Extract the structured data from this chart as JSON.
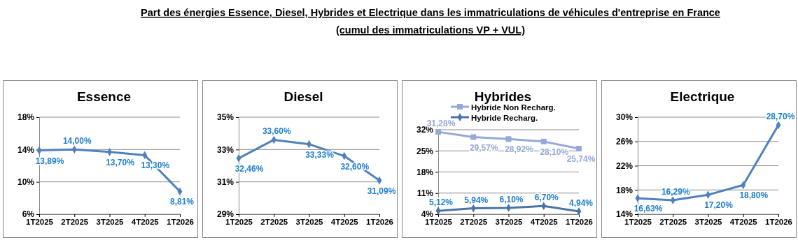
{
  "chart_data": [
    {
      "type": "line",
      "title": "Essence",
      "annotations": [
        "Part des énergies Essence, Diesel, Hybrides et Electrique dans les immatriculations de véhicules d'entreprise en France",
        "(cumul des immatriculations VP + VUL)"
      ],
      "categories": [
        "1T2025",
        "2T2025",
        "3T2025",
        "4T2025",
        "1T2026"
      ],
      "ylim": [
        6,
        18
      ],
      "yticks": [
        {
          "value": 6,
          "label": "6%"
        },
        {
          "value": 10,
          "label": "10%"
        },
        {
          "value": 14,
          "label": "14%"
        },
        {
          "value": 18,
          "label": "18%"
        }
      ],
      "grid": "y",
      "marker": "diamond",
      "legend": false,
      "series": [
        {
          "color": "#4f81bd",
          "values": [
            13.89,
            14.0,
            13.7,
            13.3,
            8.81
          ],
          "value_labels": [
            "13,89%",
            "14,00%",
            "13,70%",
            "13,30%",
            "8,81%"
          ]
        }
      ]
    },
    {
      "type": "line",
      "title": "Diesel",
      "categories": [
        "1T2025",
        "2T2025",
        "3T2025",
        "4T2025",
        "1T2026"
      ],
      "ylim": [
        29,
        35
      ],
      "yticks": [
        {
          "value": 29,
          "label": "29%"
        },
        {
          "value": 31,
          "label": "31%"
        },
        {
          "value": 33,
          "label": "33%"
        },
        {
          "value": 35,
          "label": "35%"
        }
      ],
      "grid": "y",
      "marker": "diamond",
      "legend": false,
      "series": [
        {
          "color": "#4f81bd",
          "values": [
            32.46,
            33.6,
            33.33,
            32.6,
            31.09
          ],
          "value_labels": [
            "32,46%",
            "33,60%",
            "33,33%",
            "32,60%",
            "31,09%"
          ]
        }
      ]
    },
    {
      "type": "line",
      "title": "Hybrides",
      "categories": [
        "1T2025",
        "2T2025",
        "3T2025",
        "4T2025",
        "1T2026"
      ],
      "ylim": [
        4,
        32
      ],
      "yticks": [
        {
          "value": 4,
          "label": "4%"
        },
        {
          "value": 11,
          "label": "11%"
        },
        {
          "value": 18,
          "label": "18%"
        },
        {
          "value": 25,
          "label": "25%"
        },
        {
          "value": 32,
          "label": "32%"
        }
      ],
      "grid": "y",
      "marker": "diamond",
      "legend": "top",
      "series": [
        {
          "name": "Hybride Non Recharg.",
          "color": "#95a9d6",
          "marker": "square",
          "values": [
            31.28,
            29.57,
            28.92,
            28.1,
            25.74
          ],
          "value_labels": [
            "31,28%",
            "29,57%",
            "28,92%",
            "28,10%",
            "25,74%"
          ]
        },
        {
          "name": "Hybride Recharg.",
          "color": "#4a73aa",
          "values": [
            5.12,
            5.94,
            6.1,
            6.7,
            4.94
          ],
          "value_labels": [
            "5,12%",
            "5,94%",
            "6,10%",
            "6,70%",
            "4,94%"
          ]
        }
      ]
    },
    {
      "type": "line",
      "title": "Electrique",
      "categories": [
        "1T2025",
        "2T2025",
        "3T2025",
        "4T2025",
        "1T2026"
      ],
      "ylim": [
        14,
        30
      ],
      "yticks": [
        {
          "value": 14,
          "label": "14%"
        },
        {
          "value": 18,
          "label": "18%"
        },
        {
          "value": 22,
          "label": "22%"
        },
        {
          "value": 26,
          "label": "26%"
        },
        {
          "value": 30,
          "label": "30%"
        }
      ],
      "grid": "y",
      "marker": "diamond",
      "legend": false,
      "series": [
        {
          "color": "#4f81bd",
          "values": [
            16.63,
            16.29,
            17.2,
            18.8,
            28.7
          ],
          "value_labels": [
            "16,63%",
            "16,29%",
            "17,20%",
            "18,80%",
            "28,70%"
          ]
        }
      ]
    }
  ]
}
